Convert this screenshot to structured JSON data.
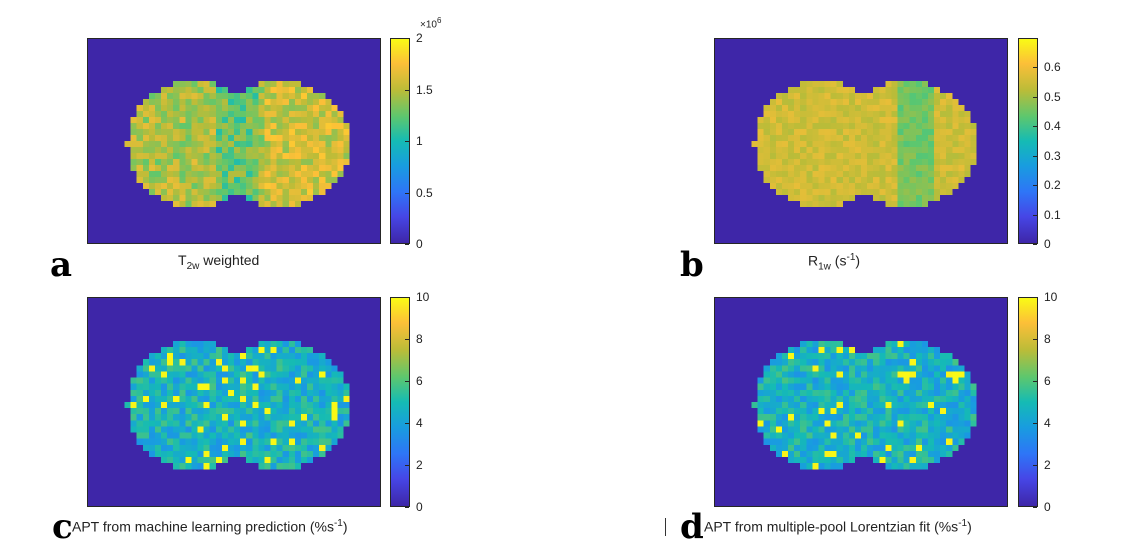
{
  "panels": [
    {
      "id": "a",
      "letter": "a",
      "caption_main": "T",
      "caption_sub": "2w",
      "caption_rest": " weighted",
      "caption_sup": "",
      "caption_tail": "",
      "cbar_ticks": [
        "0",
        "0.5",
        "1",
        "1.5",
        "2"
      ],
      "cbar_exponent_base": "×10",
      "cbar_exponent_power": "6",
      "vmax": 2
    },
    {
      "id": "b",
      "letter": "b",
      "caption_main": "R",
      "caption_sub": "1w",
      "caption_rest": " (s",
      "caption_sup": "-1",
      "caption_tail": ")",
      "cbar_ticks": [
        "0",
        "0.1",
        "0.2",
        "0.3",
        "0.4",
        "0.5",
        "0.6"
      ],
      "vmax": 0.7
    },
    {
      "id": "c",
      "letter": "c",
      "caption_main": "APT from machine learning prediction (%s",
      "caption_sup": "-1",
      "caption_tail": ")",
      "cbar_ticks": [
        "0",
        "2",
        "4",
        "6",
        "8",
        "10"
      ],
      "vmax": 10
    },
    {
      "id": "d",
      "letter": "d",
      "caption_main": "APT from multiple-pool Lorentzian fit (%s",
      "caption_sup": "-1",
      "caption_tail": ")",
      "cbar_ticks": [
        "0",
        "2",
        "4",
        "6",
        "8",
        "10"
      ],
      "vmax": 10
    }
  ],
  "colormap": "parula"
}
